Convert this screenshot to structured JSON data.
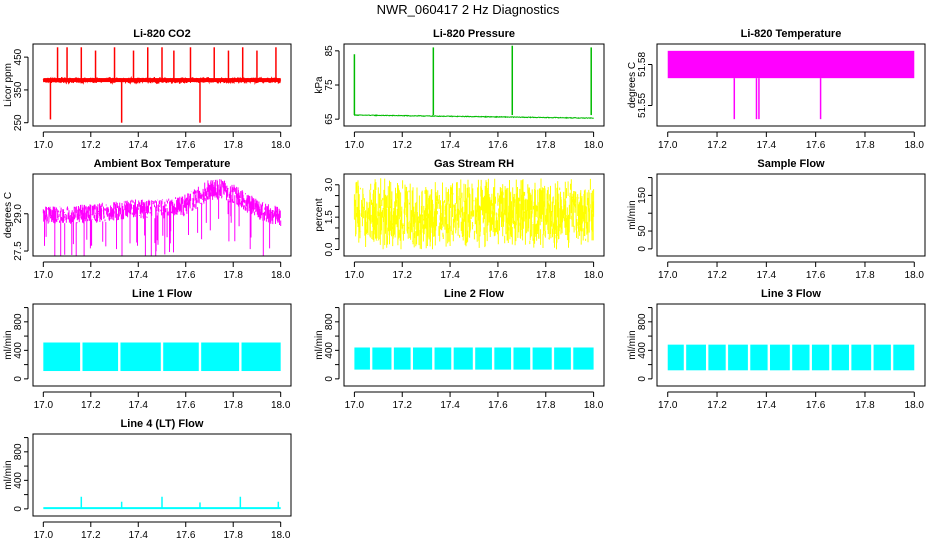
{
  "figure_title": "NWR_060417 2 Hz Diagnostics",
  "chart_data": [
    {
      "type": "line",
      "title": "Li-820 CO2",
      "xlabel": "",
      "ylabel": "Licor ppm",
      "xlim": [
        17.0,
        18.0
      ],
      "ylim": [
        240,
        490
      ],
      "xticks": [
        17.0,
        17.2,
        17.4,
        17.6,
        17.8,
        18.0
      ],
      "xtick_labels": [
        "17.0",
        "17.2",
        "17.4",
        "17.6",
        "17.8",
        "18.0"
      ],
      "yticks": [
        250,
        350,
        450
      ],
      "ytick_labels": [
        "250",
        "350",
        "450"
      ],
      "color": "#ff0000",
      "series": [
        {
          "name": "CO2",
          "baseline": 380,
          "noise": 4,
          "band_min": 370,
          "band_max": 388,
          "spikes": [
            {
              "x": 17.03,
              "y": 260
            },
            {
              "x": 17.06,
              "y": 480
            },
            {
              "x": 17.1,
              "y": 480
            },
            {
              "x": 17.16,
              "y": 480
            },
            {
              "x": 17.22,
              "y": 470
            },
            {
              "x": 17.3,
              "y": 480
            },
            {
              "x": 17.33,
              "y": 250
            },
            {
              "x": 17.38,
              "y": 470
            },
            {
              "x": 17.44,
              "y": 480
            },
            {
              "x": 17.5,
              "y": 480
            },
            {
              "x": 17.55,
              "y": 470
            },
            {
              "x": 17.62,
              "y": 480
            },
            {
              "x": 17.66,
              "y": 250
            },
            {
              "x": 17.72,
              "y": 480
            },
            {
              "x": 17.78,
              "y": 470
            },
            {
              "x": 17.84,
              "y": 480
            },
            {
              "x": 17.9,
              "y": 470
            },
            {
              "x": 17.98,
              "y": 480
            }
          ]
        }
      ]
    },
    {
      "type": "line",
      "title": "Li-820 Pressure",
      "xlabel": "",
      "ylabel": "kPa",
      "xlim": [
        17.0,
        18.0
      ],
      "ylim": [
        63,
        87
      ],
      "xticks": [
        17.0,
        17.2,
        17.4,
        17.6,
        17.8,
        18.0
      ],
      "xtick_labels": [
        "17.0",
        "17.2",
        "17.4",
        "17.6",
        "17.8",
        "18.0"
      ],
      "yticks": [
        65,
        75,
        85
      ],
      "ytick_labels": [
        "65",
        "75",
        "85"
      ],
      "color": "#00bb00",
      "series": [
        {
          "name": "Pressure",
          "start": 66.2,
          "end": 65.3,
          "noise": 0.1,
          "spikes": [
            {
              "x": 17.0,
              "y": 84
            },
            {
              "x": 17.33,
              "y": 86
            },
            {
              "x": 17.66,
              "y": 86.5
            },
            {
              "x": 17.99,
              "y": 86
            }
          ]
        }
      ]
    },
    {
      "type": "area",
      "title": "Li-820 Temperature",
      "xlabel": "",
      "ylabel": "degrees C",
      "xlim": [
        17.0,
        18.0
      ],
      "ylim": [
        51.535,
        51.595
      ],
      "xticks": [
        17.0,
        17.2,
        17.4,
        17.6,
        17.8,
        18.0
      ],
      "xtick_labels": [
        "17.0",
        "17.2",
        "17.4",
        "17.6",
        "17.8",
        "18.0"
      ],
      "yticks": [
        51.55,
        51.58
      ],
      "ytick_labels": [
        "51.55",
        "51.58"
      ],
      "color": "#ff00ff",
      "series": [
        {
          "name": "Temperature",
          "band_min": 51.57,
          "band_max": 51.59,
          "dips": [
            {
              "x": 17.27,
              "y": 51.54
            },
            {
              "x": 17.36,
              "y": 51.54
            },
            {
              "x": 17.37,
              "y": 51.54
            },
            {
              "x": 17.62,
              "y": 51.54
            }
          ]
        }
      ]
    },
    {
      "type": "line",
      "title": "Ambient Box Temperature",
      "xlabel": "",
      "ylabel": "degrees C",
      "xlim": [
        17.0,
        18.0
      ],
      "ylim": [
        27.3,
        30.6
      ],
      "xticks": [
        17.0,
        17.2,
        17.4,
        17.6,
        17.8,
        18.0
      ],
      "xtick_labels": [
        "17.0",
        "17.2",
        "17.4",
        "17.6",
        "17.8",
        "18.0"
      ],
      "yticks": [
        27.5,
        29.0
      ],
      "ytick_labels": [
        "27.5",
        "29.0"
      ],
      "color": "#ff00ff",
      "series": [
        {
          "name": "Box temp",
          "x": [
            17.0,
            17.1,
            17.2,
            17.3,
            17.4,
            17.5,
            17.6,
            17.65,
            17.7,
            17.75,
            17.8,
            17.85,
            17.9,
            17.95,
            18.0
          ],
          "low": [
            28.6,
            28.6,
            28.6,
            28.7,
            28.8,
            28.8,
            28.9,
            29.2,
            29.5,
            29.6,
            29.4,
            29.1,
            28.8,
            28.6,
            28.5
          ],
          "high": [
            29.3,
            29.3,
            29.4,
            29.5,
            29.6,
            29.6,
            29.8,
            30.1,
            30.4,
            30.4,
            30.2,
            29.9,
            29.6,
            29.4,
            29.3
          ]
        }
      ]
    },
    {
      "type": "area",
      "title": "Gas Stream RH",
      "xlabel": "",
      "ylabel": "percent",
      "xlim": [
        17.0,
        18.0
      ],
      "ylim": [
        -0.3,
        3.5
      ],
      "xticks": [
        17.0,
        17.2,
        17.4,
        17.6,
        17.8,
        18.0
      ],
      "xtick_labels": [
        "17.0",
        "17.2",
        "17.4",
        "17.6",
        "17.8",
        "18.0"
      ],
      "yticks": [
        0.0,
        1.5,
        3.0
      ],
      "ytick_labels": [
        "0.0",
        "1.5",
        "3.0"
      ],
      "minor_yticks": [
        0.5,
        1.0,
        2.0,
        2.5
      ],
      "color": "#ffff00",
      "series": [
        {
          "name": "RH",
          "band_min": 0.4,
          "band_max": 2.9,
          "extreme_min": 0.0,
          "extreme_max": 3.3
        }
      ]
    },
    {
      "type": "line",
      "title": "Sample Flow",
      "xlabel": "",
      "ylabel": "ml/min",
      "xlim": [
        17.0,
        18.0
      ],
      "ylim": [
        -20,
        210
      ],
      "xticks": [
        17.0,
        17.2,
        17.4,
        17.6,
        17.8,
        18.0
      ],
      "xtick_labels": [
        "17.0",
        "17.2",
        "17.4",
        "17.6",
        "17.8",
        "18.0"
      ],
      "yticks": [
        0,
        50,
        150
      ],
      "ytick_labels": [
        "0",
        "50",
        "150"
      ],
      "minor_yticks": [
        100,
        200
      ],
      "color": "#00ffff",
      "series": []
    },
    {
      "type": "area",
      "title": "Line 1 Flow",
      "xlabel": "",
      "ylabel": "ml/min",
      "xlim": [
        17.0,
        18.0
      ],
      "ylim": [
        -100,
        1050
      ],
      "xticks": [
        17.0,
        17.2,
        17.4,
        17.6,
        17.8,
        18.0
      ],
      "xtick_labels": [
        "17.0",
        "17.2",
        "17.4",
        "17.6",
        "17.8",
        "18.0"
      ],
      "yticks": [
        0,
        400,
        800
      ],
      "ytick_labels": [
        "0",
        "400",
        "800"
      ],
      "minor_yticks": [
        200,
        600,
        1000
      ],
      "color": "#00ffff",
      "series": [
        {
          "name": "Line 1",
          "band_min": 110,
          "band_max": 510,
          "gaps": [
            17.16,
            17.32,
            17.5,
            17.66,
            17.83
          ]
        }
      ]
    },
    {
      "type": "area",
      "title": "Line 2 Flow",
      "xlabel": "",
      "ylabel": "ml/min",
      "xlim": [
        17.0,
        18.0
      ],
      "ylim": [
        -100,
        1050
      ],
      "xticks": [
        17.0,
        17.2,
        17.4,
        17.6,
        17.8,
        18.0
      ],
      "xtick_labels": [
        "17.0",
        "17.2",
        "17.4",
        "17.6",
        "17.8",
        "18.0"
      ],
      "yticks": [
        0,
        400,
        800
      ],
      "ytick_labels": [
        "0",
        "400",
        "800"
      ],
      "minor_yticks": [
        200,
        600,
        1000
      ],
      "color": "#00ffff",
      "series": [
        {
          "name": "Line 2",
          "band_min": 130,
          "band_max": 440,
          "gaps": [
            17.07,
            17.16,
            17.24,
            17.33,
            17.41,
            17.5,
            17.58,
            17.66,
            17.74,
            17.83,
            17.91
          ]
        }
      ]
    },
    {
      "type": "area",
      "title": "Line 3 Flow",
      "xlabel": "",
      "ylabel": "ml/min",
      "xlim": [
        17.0,
        18.0
      ],
      "ylim": [
        -100,
        1050
      ],
      "xticks": [
        17.0,
        17.2,
        17.4,
        17.6,
        17.8,
        18.0
      ],
      "xtick_labels": [
        "17.0",
        "17.2",
        "17.4",
        "17.6",
        "17.8",
        "18.0"
      ],
      "yticks": [
        0,
        400,
        800
      ],
      "ytick_labels": [
        "0",
        "400",
        "800"
      ],
      "minor_yticks": [
        200,
        600,
        1000
      ],
      "color": "#00ffff",
      "series": [
        {
          "name": "Line 3",
          "band_min": 120,
          "band_max": 480,
          "gaps": [
            17.07,
            17.16,
            17.24,
            17.33,
            17.41,
            17.5,
            17.58,
            17.66,
            17.74,
            17.83,
            17.91
          ]
        }
      ]
    },
    {
      "type": "line",
      "title": "Line 4 (LT) Flow",
      "xlabel": "",
      "ylabel": "ml/min",
      "xlim": [
        17.0,
        18.0
      ],
      "ylim": [
        -100,
        1050
      ],
      "xticks": [
        17.0,
        17.2,
        17.4,
        17.6,
        17.8,
        18.0
      ],
      "xtick_labels": [
        "17.0",
        "17.2",
        "17.4",
        "17.6",
        "17.8",
        "18.0"
      ],
      "yticks": [
        0,
        400,
        800
      ],
      "ytick_labels": [
        "0",
        "400",
        "800"
      ],
      "minor_yticks": [
        200,
        600,
        1000
      ],
      "color": "#00ffff",
      "series": [
        {
          "name": "Line 4",
          "baseline": 10,
          "spikes": [
            {
              "x": 17.16,
              "y": 170
            },
            {
              "x": 17.33,
              "y": 100
            },
            {
              "x": 17.5,
              "y": 170
            },
            {
              "x": 17.66,
              "y": 90
            },
            {
              "x": 17.83,
              "y": 170
            },
            {
              "x": 17.99,
              "y": 100
            }
          ]
        }
      ]
    }
  ]
}
